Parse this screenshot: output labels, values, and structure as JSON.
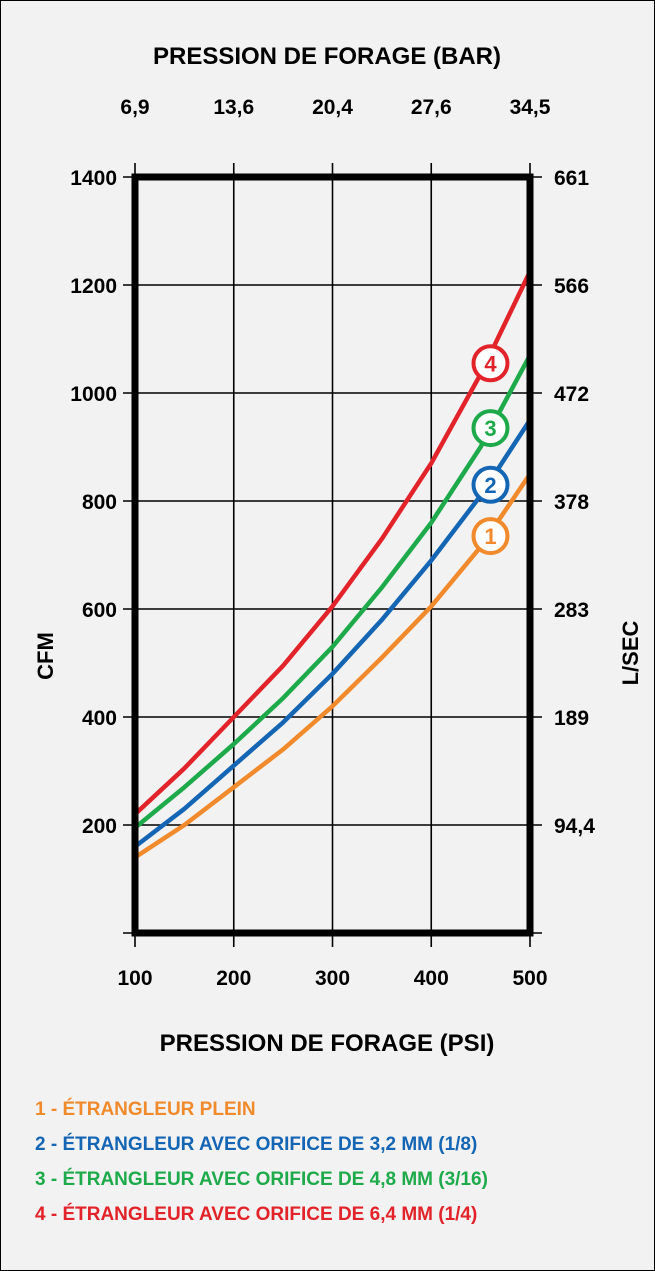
{
  "chart_data": {
    "type": "line",
    "title_top": "PRESSION DE FORAGE (BAR)",
    "top_ticks": [
      "6,9",
      "13,6",
      "20,4",
      "27,6",
      "34,5"
    ],
    "xlabel": "PRESSION DE FORAGE (PSI)",
    "ylabel_left": "CFM",
    "ylabel_right": "L/SEC",
    "x_ticks": [
      100,
      200,
      300,
      400,
      500
    ],
    "y_ticks": [
      200,
      400,
      600,
      800,
      1000,
      1200,
      1400
    ],
    "y_right_ticks": [
      "94,4",
      "189",
      "283",
      "378",
      "472",
      "566",
      "661"
    ],
    "xlim": [
      100,
      500
    ],
    "ylim": [
      0,
      1400
    ],
    "grid": true,
    "series": [
      {
        "marker": "1",
        "name": "1 - ÉTRANGLEUR PLEIN",
        "color": "#f08a2c",
        "x": [
          100,
          150,
          200,
          250,
          300,
          350,
          400,
          450,
          500
        ],
        "y": [
          140,
          200,
          270,
          340,
          420,
          510,
          605,
          715,
          850
        ],
        "marker_at": [
          460,
          735
        ]
      },
      {
        "marker": "2",
        "name": "2 - ÉTRANGLEUR AVEC ORIFICE DE 3,2 MM (1/8)",
        "color": "#1565b5",
        "x": [
          100,
          150,
          200,
          250,
          300,
          350,
          400,
          450,
          500
        ],
        "y": [
          160,
          230,
          310,
          390,
          480,
          580,
          690,
          810,
          950
        ],
        "marker_at": [
          460,
          830
        ]
      },
      {
        "marker": "3",
        "name": "3 - ÉTRANGLEUR AVEC ORIFICE DE 4,8 MM (3/16)",
        "color": "#1eaa4a",
        "x": [
          100,
          150,
          200,
          250,
          300,
          350,
          400,
          450,
          500
        ],
        "y": [
          195,
          270,
          350,
          435,
          530,
          640,
          760,
          900,
          1070
        ],
        "marker_at": [
          460,
          935
        ]
      },
      {
        "marker": "4",
        "name": "4 - ÉTRANGLEUR AVEC ORIFICE DE 6,4 MM (1/4)",
        "color": "#e2232a",
        "x": [
          100,
          150,
          200,
          250,
          300,
          350,
          400,
          450,
          500
        ],
        "y": [
          220,
          305,
          400,
          495,
          605,
          730,
          870,
          1035,
          1225
        ],
        "marker_at": [
          460,
          1055
        ]
      }
    ]
  }
}
